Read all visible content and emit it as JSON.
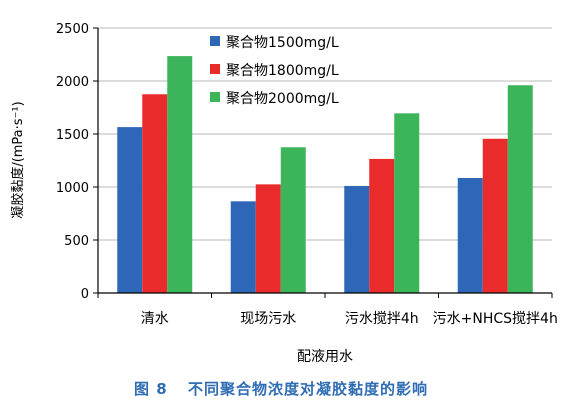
{
  "chart_data": {
    "type": "bar",
    "categories": [
      "清水",
      "现场污水",
      "污水搅拌4h",
      "污水+NHCS搅拌4h"
    ],
    "series": [
      {
        "name": "聚合物1500mg/L",
        "color": "#2f67b8",
        "values": [
          1565,
          865,
          1010,
          1085
        ]
      },
      {
        "name": "聚合物1800mg/L",
        "color": "#ea2b2b",
        "values": [
          1875,
          1025,
          1265,
          1455
        ]
      },
      {
        "name": "聚合物2000mg/L",
        "color": "#3cb55a",
        "values": [
          2235,
          1375,
          1695,
          1960
        ]
      }
    ],
    "title": "",
    "xlabel": "配液用水",
    "ylabel": "凝胶黏度/(mPa·s⁻¹)",
    "ylim": [
      0,
      2500
    ],
    "yticks": [
      "0",
      "500",
      "1000",
      "1500",
      "2000",
      "2500"
    ],
    "ytick_values": [
      0,
      500,
      1000,
      1500,
      2000,
      2500
    ],
    "grid": "horizontal",
    "legend": "top-left"
  },
  "caption": {
    "number": "图 8",
    "text": "不同聚合物浓度对凝胶黏度的影响"
  }
}
